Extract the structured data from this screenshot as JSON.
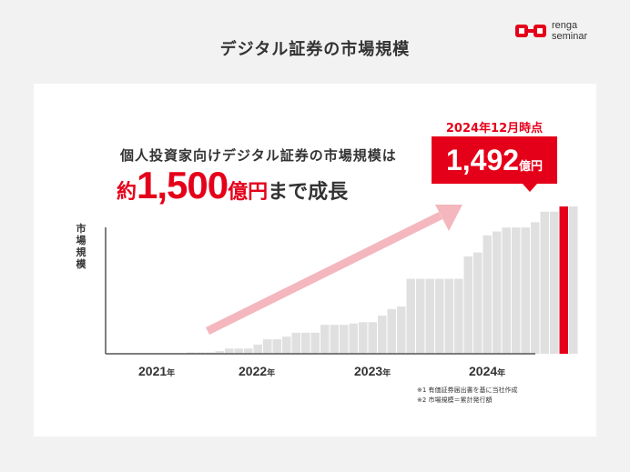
{
  "page_title": "デジタル証券の市場規模",
  "logo": {
    "line1": "renga",
    "line2": "seminar"
  },
  "headline": {
    "line1": "個人投資家向けデジタル証券の市場規模は",
    "prefix": "約",
    "number": "1,500",
    "unit": "億円",
    "suffix": "まで成長"
  },
  "callout": {
    "date": "2024年12月時点",
    "value": "1,492",
    "unit": "億円"
  },
  "notes": [
    "※1 有価証券届出書を基に当社作成",
    "※2 市場規模＝累計発行額"
  ],
  "colors": {
    "accent": "#e5001a",
    "bar": "#e0e0e0",
    "arrow": "#f4b7bd",
    "axis": "#555555"
  },
  "chart_data": {
    "type": "bar",
    "ylabel": "市場規模",
    "x_ticks": [
      {
        "year": "2021",
        "unit": "年",
        "index": 4
      },
      {
        "year": "2022",
        "unit": "年",
        "index": 15
      },
      {
        "year": "2023",
        "unit": "年",
        "index": 27
      },
      {
        "year": "2024",
        "unit": "年",
        "index": 39
      }
    ],
    "values": [
      0,
      0,
      0,
      0,
      0,
      0,
      0,
      0,
      1,
      1,
      1,
      2,
      4,
      4,
      4,
      7,
      11,
      11,
      13,
      16,
      16,
      16,
      22,
      22,
      22,
      23,
      24,
      24,
      29,
      34,
      36,
      57,
      57,
      57,
      57,
      57,
      57,
      74,
      77,
      90,
      93,
      96,
      96,
      96,
      100,
      108,
      108,
      112,
      112
    ],
    "highlight_index": 47,
    "ylim": [
      0,
      112
    ],
    "grid": false
  }
}
